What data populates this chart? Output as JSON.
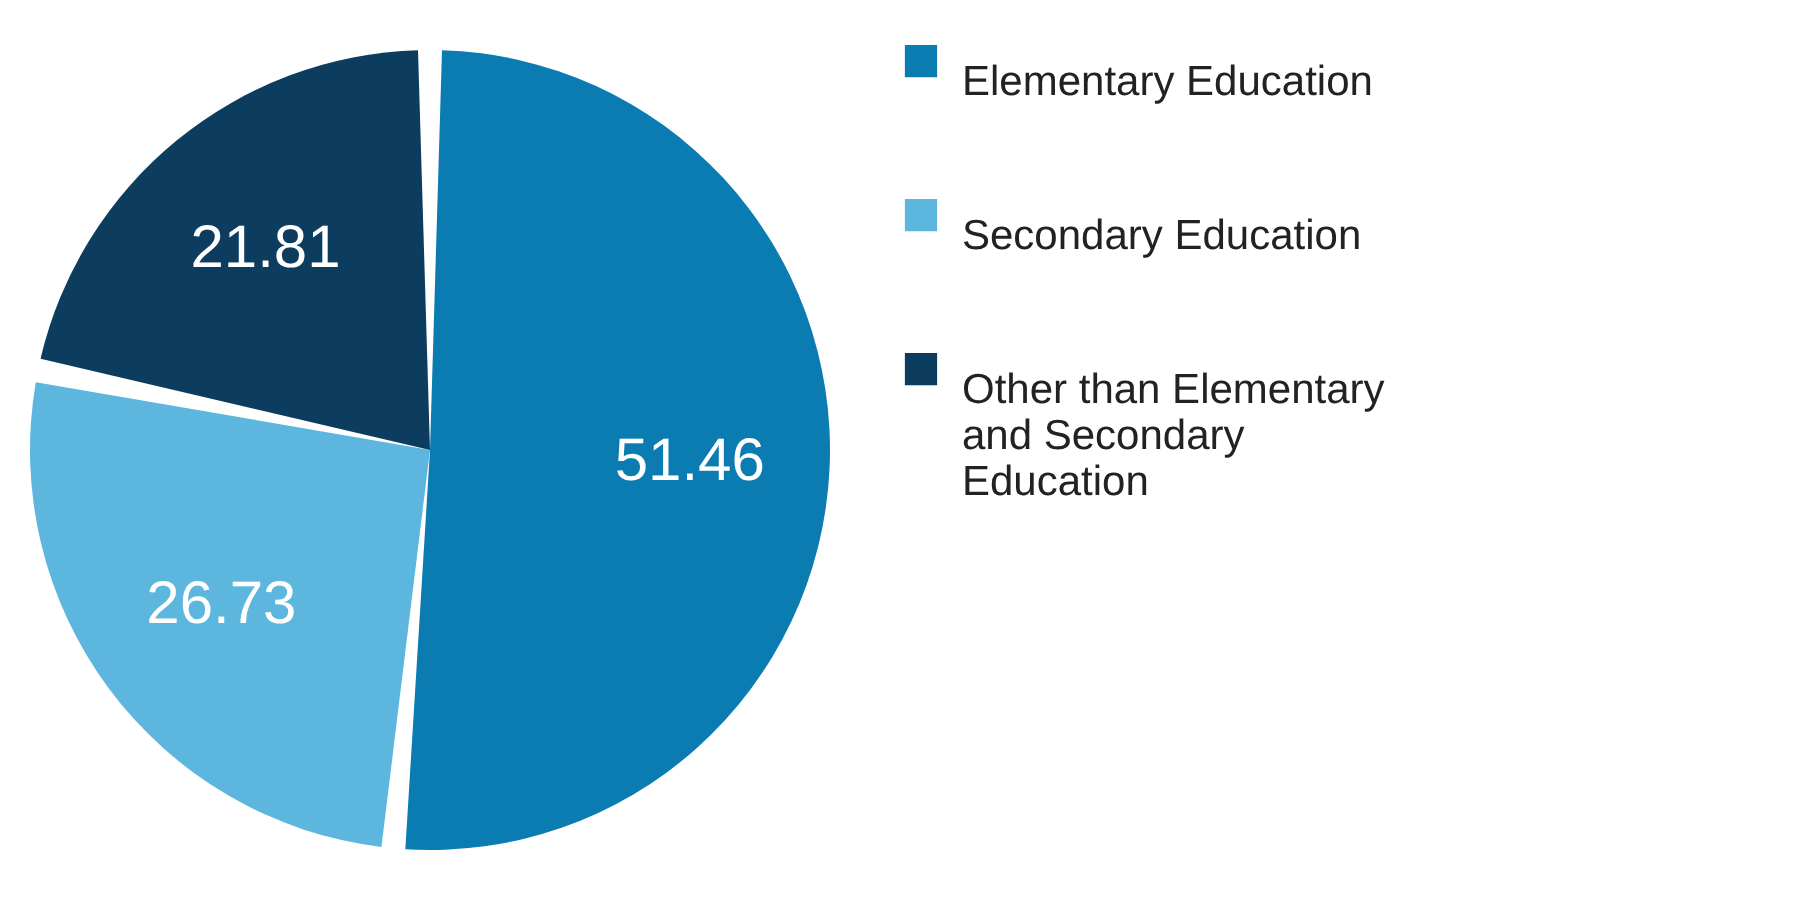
{
  "chart_data": {
    "type": "pie",
    "categories": [
      "Elementary Education",
      "Secondary Education",
      "Other than Elementary and Secondary Education"
    ],
    "values": [
      51.46,
      26.73,
      21.81
    ],
    "colors": [
      "#0a7cb2",
      "#5cb6de",
      "#0c3d5e"
    ],
    "data_labels": true,
    "legend": "right"
  }
}
